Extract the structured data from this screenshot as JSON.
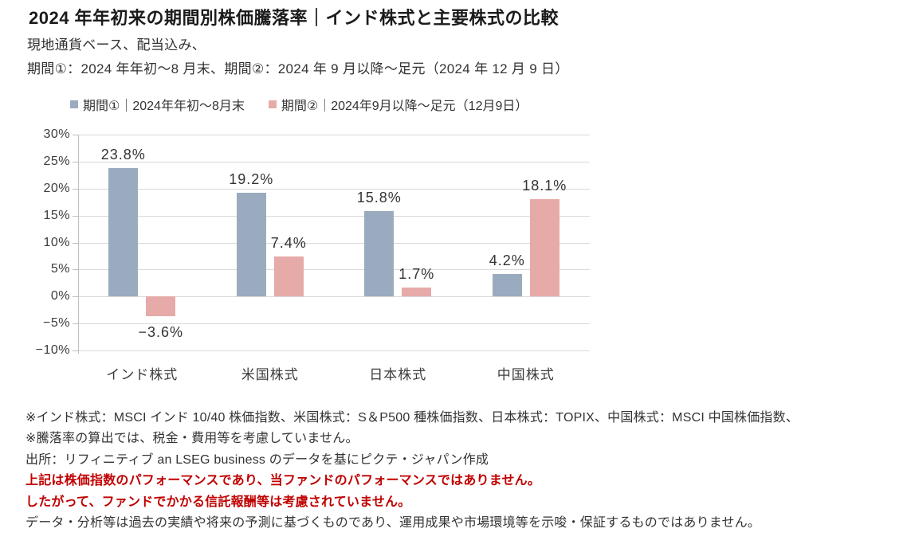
{
  "header": {
    "title": "2024 年年初来の期間別株価騰落率｜インド株式と主要株式の比較",
    "subtitle_line1": "現地通貨ベース、配当込み、",
    "subtitle_line2": "期間①：2024 年年初～8 月末、期間②：2024 年 9 月以降～足元（2024 年 12 月 9 日）"
  },
  "chart_data": {
    "type": "bar",
    "categories": [
      "インド株式",
      "米国株式",
      "日本株式",
      "中国株式"
    ],
    "series": [
      {
        "name": "期間①｜2024年年初～8月末",
        "color": "#9AABBF",
        "values": [
          23.8,
          19.2,
          15.8,
          4.2
        ],
        "labels": [
          "23.8%",
          "19.2%",
          "15.8%",
          "4.2%"
        ]
      },
      {
        "name": "期間②｜2024年9月以降～足元（12月9日）",
        "color": "#E6ABA8",
        "values": [
          -3.6,
          7.4,
          1.7,
          18.1
        ],
        "labels": [
          "−3.6%",
          "7.4%",
          "1.7%",
          "18.1%"
        ]
      }
    ],
    "title": "",
    "xlabel": "",
    "ylabel": "",
    "ylim": [
      -10,
      30
    ],
    "ytick_step": 5,
    "yticks": [
      "30%",
      "25%",
      "20%",
      "15%",
      "10%",
      "5%",
      "0%",
      "−5%",
      "−10%"
    ],
    "grid": true,
    "legend_position": "top"
  },
  "footnotes": {
    "line1": "※インド株式：MSCI インド 10/40 株価指数、米国株式：S＆P500 種株価指数、日本株式：TOPIX、中国株式：MSCI 中国株価指数、",
    "line2": "※騰落率の算出では、税金・費用等を考慮していません。",
    "line3": "出所：リフィニティブ an LSEG business のデータを基にピクテ・ジャパン作成",
    "line4": "上記は株価指数のパフォーマンスであり、当ファンドのパフォーマンスではありません。",
    "line5": "したがって、ファンドでかかる信託報酬等は考慮されていません。",
    "line6": "データ・分析等は過去の実績や将来の予測に基づくものであり、運用成果や市場環境等を示唆・保証するものではありません。"
  },
  "colors": {
    "period1_bar": "#9AABBF",
    "period2_bar": "#E6ABA8",
    "warning_text": "#C00000",
    "grid_line": "#D9D9D9",
    "axis_line": "#BFBFBF",
    "text": "#333333"
  }
}
